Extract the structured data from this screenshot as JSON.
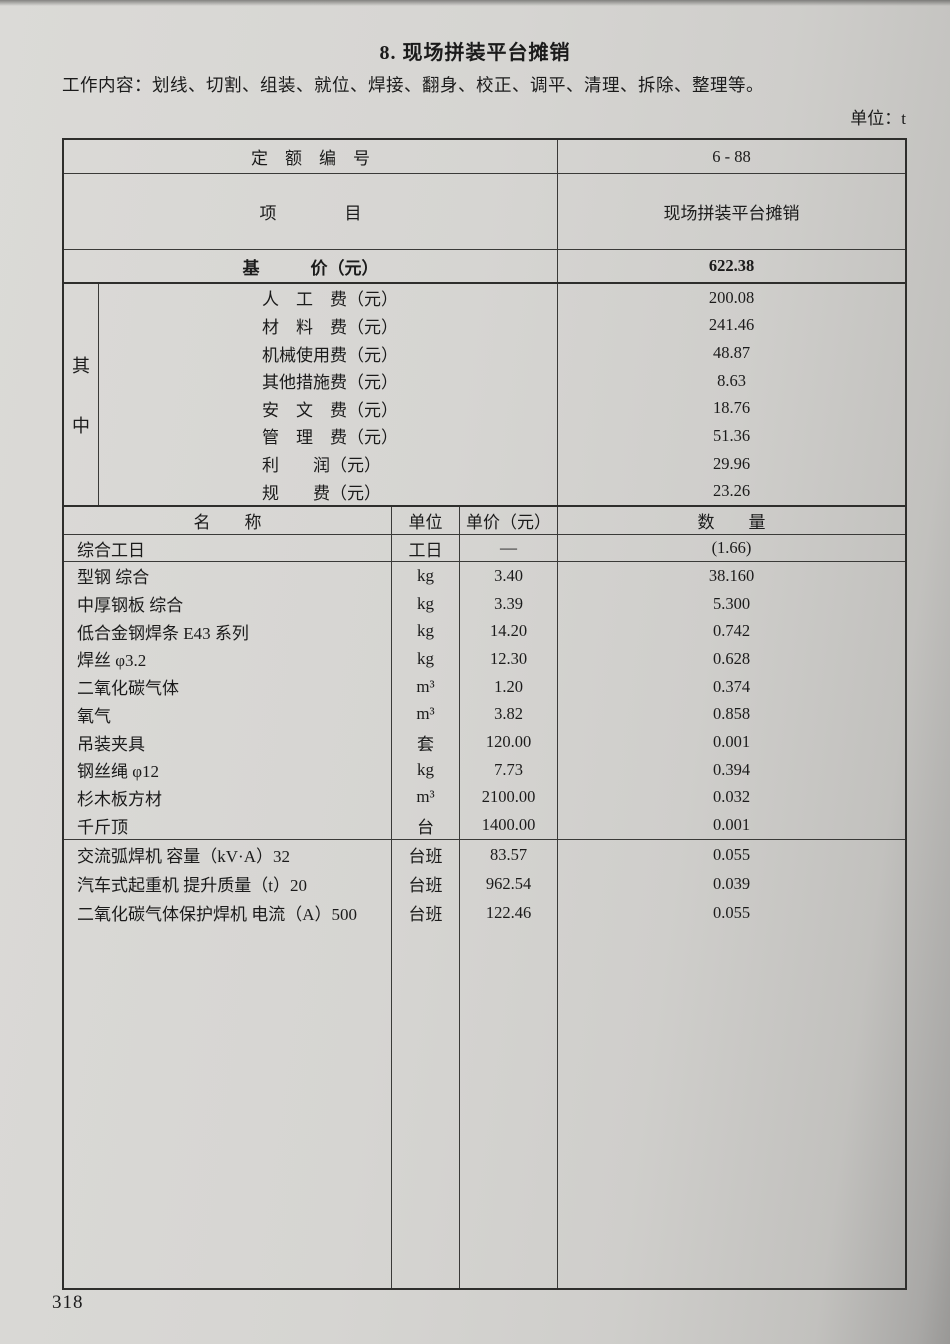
{
  "page": {
    "title": "8. 现场拼装平台摊销",
    "work_content": "工作内容：划线、切割、组装、就位、焊接、翻身、校正、调平、清理、拆除、整理等。",
    "unit_note": "单位：t",
    "page_number": "318"
  },
  "quota": {
    "code_label": "定　额　编　号",
    "code_value": "6 - 88",
    "item_label": "项　　　　目",
    "item_value": "现场拼装平台摊销",
    "base_price_label": "基　　　价（元）",
    "base_price_value": "622.38",
    "among_top": "其",
    "among_bottom": "中",
    "components": [
      {
        "label": "人　工　费（元）",
        "value": "200.08"
      },
      {
        "label": "材　料　费（元）",
        "value": "241.46"
      },
      {
        "label": "机械使用费（元）",
        "value": "48.87"
      },
      {
        "label": "其他措施费（元）",
        "value": "8.63"
      },
      {
        "label": "安　文　费（元）",
        "value": "18.76"
      },
      {
        "label": "管　理　费（元）",
        "value": "51.36"
      },
      {
        "label": "利　　润（元）",
        "value": "29.96"
      },
      {
        "label": "规　　费（元）",
        "value": "23.26"
      }
    ]
  },
  "resources": {
    "headers": {
      "name": "名　　称",
      "unit": "单位",
      "price": "单价（元）",
      "quantity": "数　　量"
    },
    "labor": {
      "name": "综合工日",
      "unit": "工日",
      "price": "—",
      "qty": "(1.66)"
    },
    "materials": [
      {
        "name": "型钢 综合",
        "unit": "kg",
        "price": "3.40",
        "qty": "38.160"
      },
      {
        "name": "中厚钢板 综合",
        "unit": "kg",
        "price": "3.39",
        "qty": "5.300"
      },
      {
        "name": "低合金钢焊条 E43 系列",
        "unit": "kg",
        "price": "14.20",
        "qty": "0.742"
      },
      {
        "name": "焊丝 φ3.2",
        "unit": "kg",
        "price": "12.30",
        "qty": "0.628"
      },
      {
        "name": "二氧化碳气体",
        "unit": "m³",
        "price": "1.20",
        "qty": "0.374"
      },
      {
        "name": "氧气",
        "unit": "m³",
        "price": "3.82",
        "qty": "0.858"
      },
      {
        "name": "吊装夹具",
        "unit": "套",
        "price": "120.00",
        "qty": "0.001"
      },
      {
        "name": "钢丝绳 φ12",
        "unit": "kg",
        "price": "7.73",
        "qty": "0.394"
      },
      {
        "name": "杉木板方材",
        "unit": "m³",
        "price": "2100.00",
        "qty": "0.032"
      },
      {
        "name": "千斤顶",
        "unit": "台",
        "price": "1400.00",
        "qty": "0.001"
      }
    ],
    "machines": [
      {
        "name": "交流弧焊机 容量（kV·A）32",
        "unit": "台班",
        "price": "83.57",
        "qty": "0.055"
      },
      {
        "name": "汽车式起重机 提升质量（t）20",
        "unit": "台班",
        "price": "962.54",
        "qty": "0.039"
      },
      {
        "name": "二氧化碳气体保护焊机 电流（A）500",
        "unit": "台班",
        "price": "122.46",
        "qty": "0.055"
      }
    ]
  }
}
